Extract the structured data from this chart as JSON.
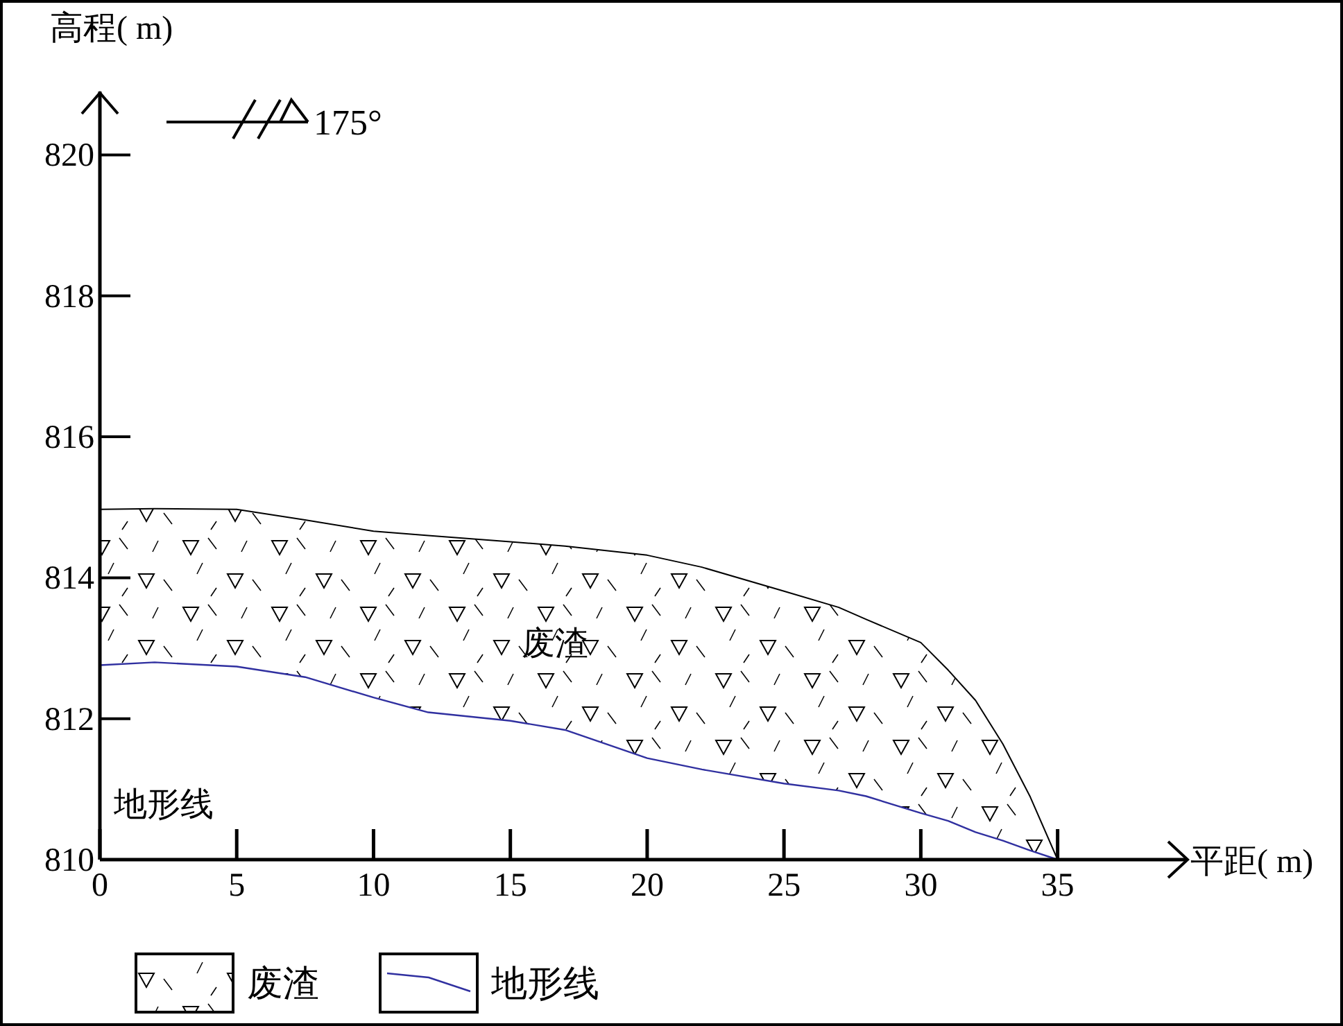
{
  "chart_data": {
    "type": "line",
    "xlabel": "平距( m)",
    "ylabel": "高程( m)",
    "xlim": [
      0,
      39.7
    ],
    "xticks": [
      0,
      5,
      10,
      15,
      20,
      25,
      30,
      35
    ],
    "ylim": [
      810,
      820.9
    ],
    "yticks": [
      810,
      812,
      814,
      816,
      818,
      820
    ],
    "grid": false,
    "legend": "bottom",
    "marker": "none",
    "line_style": "solid",
    "x": [
      0,
      2,
      5,
      7.5,
      10,
      12,
      15,
      17,
      20,
      22,
      25,
      27,
      28,
      30,
      31,
      32,
      33,
      34,
      35
    ],
    "series": [
      {
        "name": "废渣",
        "type": "area",
        "color": "#000000",
        "values": [
          814.97,
          814.98,
          814.97,
          814.82,
          814.66,
          814.6,
          814.51,
          814.45,
          814.32,
          814.15,
          813.81,
          813.58,
          813.41,
          813.08,
          812.69,
          812.26,
          811.64,
          810.89,
          810
        ]
      },
      {
        "name": "地形线",
        "color": "#3030a0",
        "values": [
          812.76,
          812.8,
          812.74,
          812.59,
          812.3,
          812.09,
          811.97,
          811.84,
          811.44,
          811.28,
          811.08,
          810.98,
          810.9,
          810.66,
          810.55,
          810.39,
          810.27,
          810.13,
          810
        ]
      }
    ],
    "annotations": [
      "175°",
      "废渣",
      "地形线"
    ]
  }
}
